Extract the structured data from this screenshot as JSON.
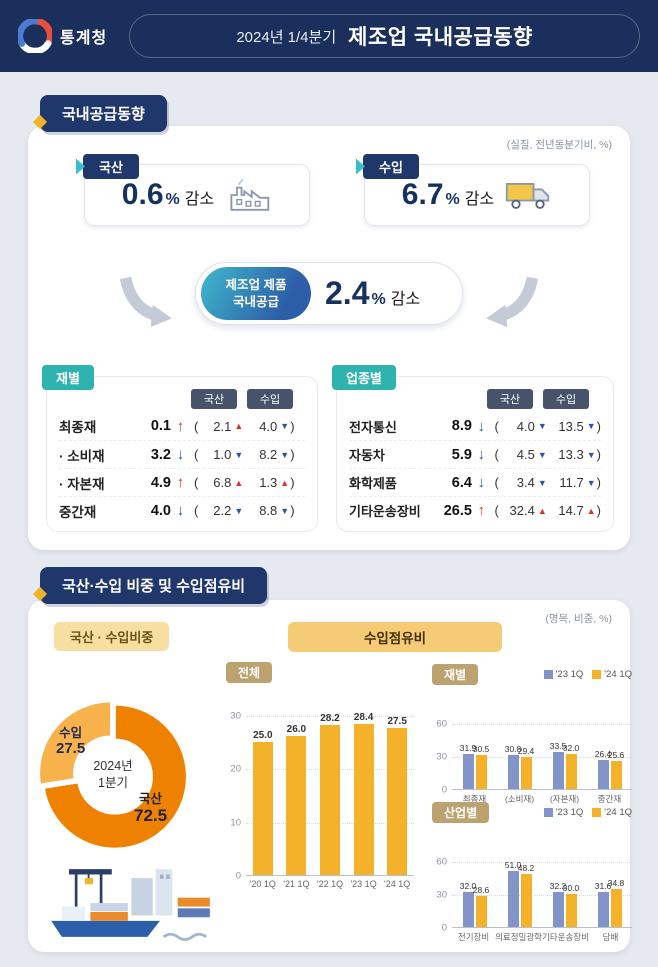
{
  "header": {
    "agency": "통계청",
    "subtitle": "2024년 1/4분기",
    "title": "제조업 국내공급동향"
  },
  "colors": {
    "navy": "#1B2F5C",
    "teal": "#37BECB",
    "tag_teal": "#2EB3AE",
    "gold": "#F0B429",
    "bar_blue": "#8395C8",
    "bar_yellow": "#F3B229",
    "up_red": "#D6332C",
    "down_blue": "#2B55A4"
  },
  "section1": {
    "title": "국내공급동향",
    "note": "(실질, 전년동분기비, %)",
    "domestic_card": {
      "badge": "국산",
      "value": "0.6",
      "percent": "%",
      "direction": "감소"
    },
    "import_card": {
      "badge": "수입",
      "value": "6.7",
      "percent": "%",
      "direction": "감소"
    },
    "total_card": {
      "badge_line1": "제조업 제품",
      "badge_line2": "국내공급",
      "value": "2.4",
      "percent": "%",
      "direction": "감소"
    },
    "goods_table": {
      "tag": "재별",
      "col_domestic": "국산",
      "col_import": "수입",
      "rows": [
        {
          "name": "최종재",
          "value": "0.1",
          "value_dir": "up",
          "d1": "2.1",
          "d1_dir": "up",
          "d2": "4.0",
          "d2_dir": "down"
        },
        {
          "name": "· 소비재",
          "value": "3.2",
          "value_dir": "down",
          "d1": "1.0",
          "d1_dir": "down",
          "d2": "8.2",
          "d2_dir": "down"
        },
        {
          "name": "· 자본재",
          "value": "4.9",
          "value_dir": "up",
          "d1": "6.8",
          "d1_dir": "up",
          "d2": "1.3",
          "d2_dir": "up"
        },
        {
          "name": "중간재",
          "value": "4.0",
          "value_dir": "down",
          "d1": "2.2",
          "d1_dir": "down",
          "d2": "8.8",
          "d2_dir": "down"
        }
      ]
    },
    "industry_table": {
      "tag": "업종별",
      "col_domestic": "국산",
      "col_import": "수입",
      "rows": [
        {
          "name": "전자통신",
          "value": "8.9",
          "value_dir": "down",
          "d1": "4.0",
          "d1_dir": "down",
          "d2": "13.5",
          "d2_dir": "down"
        },
        {
          "name": "자동차",
          "value": "5.9",
          "value_dir": "down",
          "d1": "4.5",
          "d1_dir": "down",
          "d2": "13.3",
          "d2_dir": "down"
        },
        {
          "name": "화학제품",
          "value": "6.4",
          "value_dir": "down",
          "d1": "3.4",
          "d1_dir": "down",
          "d2": "11.7",
          "d2_dir": "down"
        },
        {
          "name": "기타운송장비",
          "value": "26.5",
          "value_dir": "up",
          "d1": "32.4",
          "d1_dir": "up",
          "d2": "14.7",
          "d2_dir": "up"
        }
      ]
    }
  },
  "section2": {
    "title": "국산·수입 비중 및 수입점유비",
    "note": "(명목, 비중, %)",
    "pie_label": "국산 · 수입비중",
    "share_label": "수입점유비"
  },
  "chart_data": [
    {
      "type": "pie",
      "title": "국산·수입비중",
      "labels": [
        "수입",
        "국산"
      ],
      "values": [
        27.5,
        72.5
      ],
      "colors": [
        "#F7B24C",
        "#EE8200"
      ],
      "center_label_line1": "2024년",
      "center_label_line2": "1분기"
    },
    {
      "type": "bar",
      "tag": "전체",
      "title": "수입점유비 전체",
      "categories": [
        "'20 1Q",
        "'21 1Q",
        "'22 1Q",
        "'23 1Q",
        "'24 1Q"
      ],
      "values": [
        25.0,
        26.0,
        28.2,
        28.4,
        27.5
      ],
      "ylim": [
        0,
        30
      ],
      "yticks": [
        0,
        10,
        20,
        30
      ],
      "color": "#F3B229"
    },
    {
      "type": "grouped-bar",
      "tag": "재별",
      "legend": [
        "'23 1Q",
        "'24 1Q"
      ],
      "colors": [
        "#8395C8",
        "#F3B229"
      ],
      "categories": [
        "최종재",
        "(소비재)",
        "(자본재)",
        "중간재"
      ],
      "series": [
        {
          "name": "'23 1Q",
          "values": [
            31.9,
            30.8,
            33.5,
            26.4
          ]
        },
        {
          "name": "'24 1Q",
          "values": [
            30.5,
            29.4,
            32.0,
            25.6
          ]
        }
      ],
      "ylim": [
        0,
        60
      ],
      "yticks": [
        0,
        30,
        60
      ]
    },
    {
      "type": "grouped-bar",
      "tag": "산업별",
      "legend": [
        "'23 1Q",
        "'24 1Q"
      ],
      "colors": [
        "#8395C8",
        "#F3B229"
      ],
      "categories": [
        "전기장비",
        "의료정밀광학",
        "기타운송장비",
        "담배"
      ],
      "series": [
        {
          "name": "'23 1Q",
          "values": [
            32.0,
            51.0,
            32.2,
            31.6
          ]
        },
        {
          "name": "'24 1Q",
          "values": [
            28.6,
            48.2,
            30.0,
            34.8
          ]
        }
      ],
      "ylim": [
        0,
        60
      ],
      "yticks": [
        0,
        30,
        60
      ]
    }
  ]
}
